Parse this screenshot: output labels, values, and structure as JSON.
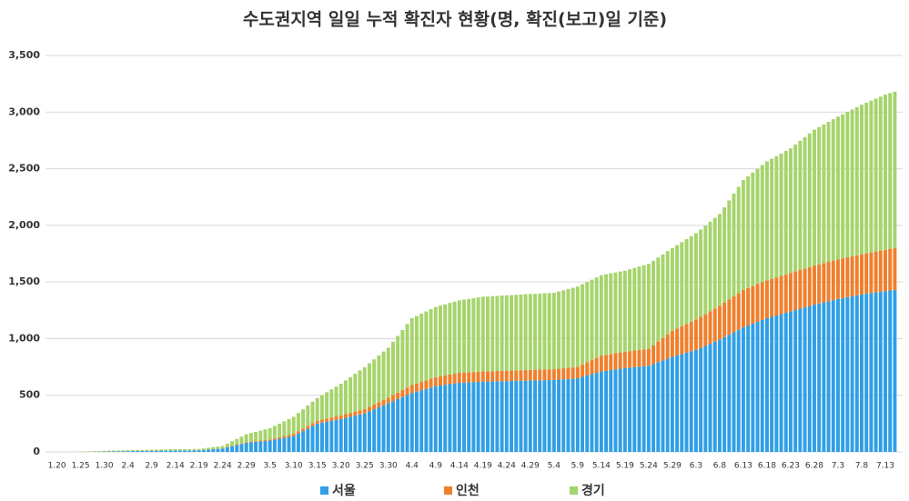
{
  "chart_data": {
    "type": "stacked_bar",
    "title": "수도권지역 일일 누적 확진자 현황(명, 확진(보고)일 기준)",
    "categories": [
      "1.20",
      null,
      null,
      null,
      null,
      "1.25",
      null,
      null,
      null,
      null,
      "1.30",
      null,
      null,
      null,
      null,
      "2.4",
      null,
      null,
      null,
      null,
      "2.9",
      null,
      null,
      null,
      null,
      "2.14",
      null,
      null,
      null,
      null,
      "2.19",
      null,
      null,
      null,
      null,
      "2.24",
      null,
      null,
      null,
      null,
      "2.29",
      null,
      null,
      null,
      null,
      "3.5",
      null,
      null,
      null,
      null,
      "3.10",
      null,
      null,
      null,
      null,
      "3.15",
      null,
      null,
      null,
      null,
      "3.20",
      null,
      null,
      null,
      null,
      "3.25",
      null,
      null,
      null,
      null,
      "3.30",
      null,
      null,
      null,
      null,
      "4.4",
      null,
      null,
      null,
      null,
      "4.9",
      null,
      null,
      null,
      null,
      "4.14",
      null,
      null,
      null,
      null,
      "4.19",
      null,
      null,
      null,
      null,
      "4.24",
      null,
      null,
      null,
      null,
      "4.29",
      null,
      null,
      null,
      null,
      "5.4",
      null,
      null,
      null,
      null,
      "5.9",
      null,
      null,
      null,
      null,
      "5.14",
      null,
      null,
      null,
      null,
      "5.19",
      null,
      null,
      null,
      null,
      "5.24",
      null,
      null,
      null,
      null,
      "5.29",
      null,
      null,
      null,
      null,
      "6.3",
      null,
      null,
      null,
      null,
      "6.8",
      null,
      null,
      null,
      null,
      "6.13",
      null,
      null,
      null,
      null,
      "6.18",
      null,
      null,
      null,
      null,
      "6.23",
      null,
      null,
      null,
      null,
      "6.28",
      null,
      null,
      null,
      null,
      "7.3",
      null,
      null,
      null,
      null,
      "7.8",
      null,
      null,
      null,
      null,
      "7.13",
      null,
      null
    ],
    "series": [
      {
        "name": "서울",
        "color": "#2f9fe6",
        "values": [
          0,
          0,
          0,
          0,
          0,
          0,
          1,
          1,
          2,
          2,
          3,
          4,
          5,
          5,
          6,
          7,
          8,
          8,
          9,
          9,
          10,
          10,
          11,
          11,
          12,
          12,
          12,
          13,
          13,
          14,
          14,
          17,
          20,
          24,
          27,
          30,
          40,
          50,
          60,
          70,
          80,
          84,
          88,
          92,
          96,
          100,
          108,
          116,
          124,
          132,
          140,
          162,
          184,
          206,
          228,
          250,
          258,
          266,
          274,
          282,
          290,
          300,
          310,
          320,
          330,
          340,
          358,
          376,
          394,
          412,
          430,
          448,
          466,
          484,
          502,
          520,
          532,
          544,
          556,
          568,
          580,
          586,
          592,
          598,
          604,
          610,
          612,
          614,
          616,
          618,
          620,
          621,
          622,
          623,
          624,
          625,
          626,
          627,
          628,
          629,
          630,
          631,
          632,
          633,
          634,
          635,
          638,
          641,
          644,
          647,
          650,
          662,
          674,
          686,
          698,
          710,
          716,
          722,
          728,
          734,
          740,
          744,
          748,
          752,
          756,
          760,
          776,
          792,
          808,
          824,
          840,
          852,
          864,
          876,
          888,
          900,
          918,
          936,
          954,
          972,
          990,
          1012,
          1034,
          1056,
          1078,
          1100,
          1116,
          1132,
          1148,
          1164,
          1180,
          1192,
          1204,
          1216,
          1228,
          1240,
          1252,
          1264,
          1276,
          1288,
          1300,
          1310,
          1320,
          1330,
          1340,
          1350,
          1358,
          1366,
          1374,
          1382,
          1390,
          1396,
          1402,
          1408,
          1414,
          1420,
          1425,
          1430
        ]
      },
      {
        "name": "인천",
        "color": "#f07f2c",
        "values": [
          0,
          0,
          0,
          0,
          0,
          0,
          0,
          0,
          1,
          1,
          1,
          1,
          1,
          1,
          1,
          1,
          1,
          1,
          1,
          1,
          1,
          1,
          1,
          1,
          1,
          1,
          1,
          1,
          1,
          1,
          1,
          1,
          1,
          2,
          2,
          2,
          3,
          4,
          4,
          5,
          6,
          7,
          7,
          8,
          8,
          9,
          11,
          13,
          16,
          18,
          20,
          21,
          22,
          24,
          25,
          26,
          27,
          28,
          30,
          31,
          32,
          33,
          34,
          36,
          37,
          38,
          40,
          43,
          45,
          48,
          50,
          54,
          58,
          62,
          66,
          70,
          72,
          74,
          76,
          78,
          80,
          82,
          83,
          85,
          86,
          88,
          88,
          89,
          89,
          90,
          90,
          90,
          91,
          91,
          92,
          92,
          92,
          93,
          93,
          94,
          94,
          94,
          94,
          95,
          95,
          95,
          96,
          97,
          98,
          99,
          100,
          108,
          116,
          124,
          132,
          140,
          141,
          142,
          143,
          144,
          145,
          146,
          147,
          148,
          149,
          150,
          166,
          182,
          198,
          214,
          230,
          238,
          246,
          254,
          262,
          270,
          276,
          282,
          288,
          294,
          300,
          306,
          312,
          318,
          324,
          330,
          331,
          332,
          333,
          334,
          335,
          336,
          337,
          338,
          339,
          340,
          341,
          342,
          343,
          344,
          345,
          346,
          347,
          348,
          349,
          350,
          351,
          352,
          353,
          354,
          355,
          357,
          359,
          361,
          363,
          365,
          368,
          370
        ]
      },
      {
        "name": "경기",
        "color": "#a6d46c",
        "values": [
          1,
          1,
          1,
          2,
          2,
          2,
          3,
          4,
          4,
          5,
          6,
          6,
          6,
          7,
          7,
          7,
          7,
          8,
          8,
          9,
          9,
          9,
          10,
          10,
          11,
          11,
          11,
          11,
          11,
          11,
          11,
          13,
          15,
          16,
          18,
          20,
          30,
          40,
          50,
          60,
          70,
          76,
          82,
          88,
          94,
          100,
          110,
          120,
          130,
          140,
          150,
          160,
          170,
          180,
          190,
          200,
          216,
          232,
          248,
          264,
          280,
          298,
          316,
          334,
          352,
          370,
          384,
          398,
          412,
          426,
          440,
          470,
          500,
          530,
          560,
          590,
          596,
          602,
          608,
          614,
          620,
          624,
          628,
          632,
          636,
          640,
          644,
          648,
          652,
          656,
          660,
          661,
          662,
          663,
          664,
          665,
          666,
          667,
          668,
          669,
          670,
          671,
          672,
          673,
          674,
          675,
          682,
          689,
          696,
          703,
          710,
          710,
          710,
          710,
          710,
          710,
          711,
          712,
          713,
          714,
          715,
          722,
          729,
          736,
          743,
          750,
          746,
          742,
          738,
          734,
          730,
          736,
          742,
          748,
          754,
          760,
          770,
          780,
          790,
          800,
          810,
          842,
          874,
          906,
          938,
          970,
          986,
          1002,
          1018,
          1034,
          1050,
          1060,
          1070,
          1080,
          1090,
          1100,
          1120,
          1140,
          1160,
          1180,
          1200,
          1212,
          1224,
          1236,
          1248,
          1260,
          1272,
          1284,
          1296,
          1308,
          1320,
          1330,
          1340,
          1350,
          1360,
          1370,
          1375,
          1380
        ]
      }
    ],
    "ylim": [
      0,
      3500
    ],
    "yticks": [
      0,
      500,
      {
        "value": 1000,
        "label": "1,000"
      },
      {
        "value": 1500,
        "label": "1,500"
      },
      {
        "value": 2000,
        "label": "2,000"
      },
      {
        "value": 2500,
        "label": "2,500"
      },
      {
        "value": 3000,
        "label": "3,000"
      },
      {
        "value": 3500,
        "label": "3,500"
      }
    ],
    "grid": true,
    "legend": "bottom"
  }
}
